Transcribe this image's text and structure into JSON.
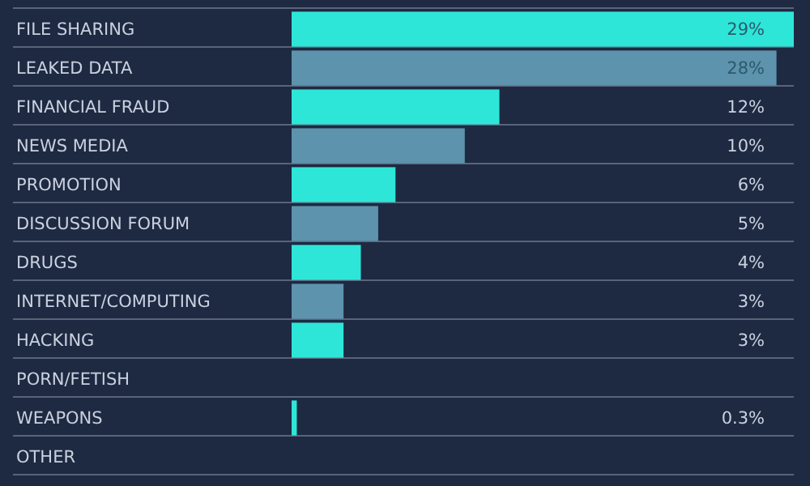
{
  "chart_data": {
    "type": "bar",
    "orientation": "horizontal",
    "grid": true,
    "categories": [
      "FILE SHARING",
      "LEAKED DATA",
      "FINANCIAL FRAUD",
      "NEWS MEDIA",
      "PROMOTION",
      "DISCUSSION FORUM",
      "DRUGS",
      "INTERNET/COMPUTING",
      "HACKING",
      "PORN/FETISH",
      "WEAPONS",
      "OTHER"
    ],
    "values": [
      29,
      28,
      12,
      10,
      6,
      5,
      4,
      3,
      3,
      null,
      0.3,
      null
    ],
    "value_labels": [
      "29%",
      "28%",
      "12%",
      "10%",
      "6%",
      "5%",
      "4%",
      "3%",
      "3%",
      null,
      "0.3%",
      null
    ],
    "colors": [
      "#2ee6d8",
      "#5e93ad",
      "#2ee6d8",
      "#5e93ad",
      "#2ee6d8",
      "#5e93ad",
      "#2ee6d8",
      "#5e93ad",
      "#2ee6d8",
      null,
      "#2ee6d8",
      null
    ]
  }
}
